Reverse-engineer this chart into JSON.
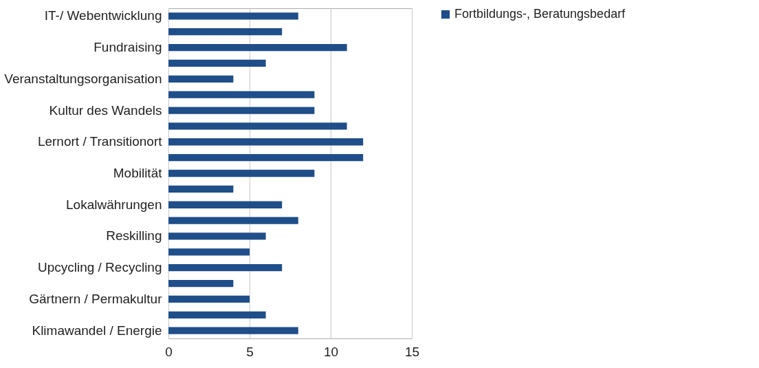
{
  "chart_data": {
    "type": "bar",
    "orientation": "horizontal",
    "categories": [
      "IT-/ Webentwicklung",
      null,
      "Fundraising",
      null,
      "Veranstaltungsorganisation",
      null,
      "Kultur des Wandels",
      null,
      "Lernort / Transitionort",
      null,
      "Mobilität",
      null,
      "Lokalwährungen",
      null,
      "Reskilling",
      null,
      "Upcycling / Recycling",
      null,
      "Gärtnern / Permakultur",
      null,
      "Klimawandel / Energie"
    ],
    "series": [
      {
        "name": "Fortbildungs-, Beratungsbedarf",
        "color": "#1f4e89",
        "values": [
          8,
          7,
          11,
          6,
          4,
          9,
          9,
          11,
          12,
          12,
          9,
          4,
          7,
          8,
          6,
          5,
          7,
          4,
          5,
          6,
          8
        ]
      }
    ],
    "xlim": [
      0,
      15
    ],
    "xticks": [
      0,
      5,
      10,
      15
    ],
    "grid": "x",
    "legend": "right"
  }
}
